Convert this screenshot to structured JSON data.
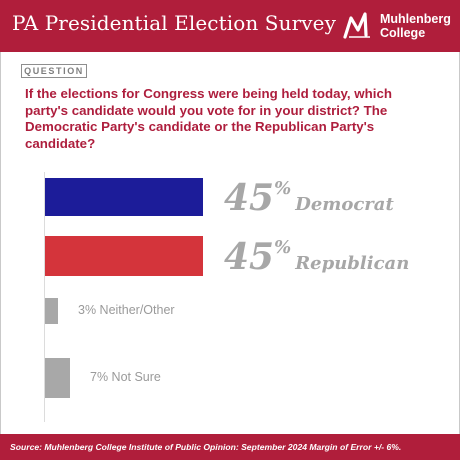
{
  "header": {
    "title": "PA Presidential Election Survey",
    "logo_line1": "Muhlenberg",
    "logo_line2": "College"
  },
  "question": {
    "tag": "QUESTION",
    "text": "If the elections for Congress were being held today, which party's candidate would you vote for in your district? The Democratic Party's candidate or the Republican Party's candidate?"
  },
  "chart_data": {
    "type": "bar",
    "orientation": "horizontal",
    "categories": [
      "Democrat",
      "Republican",
      "Neither/Other",
      "Not Sure"
    ],
    "values": [
      45,
      45,
      3,
      7
    ],
    "value_labels": [
      "45",
      "45",
      "3%",
      "7%"
    ],
    "colors": [
      "#1c1c99",
      "#d4343b",
      "#a8a8a8",
      "#a8a8a8"
    ],
    "grid": false,
    "legend": "none"
  },
  "footer": {
    "source": "Source: Muhlenberg College Institute of Public Opinion: September 2024 Margin of Error +/- 6%."
  }
}
